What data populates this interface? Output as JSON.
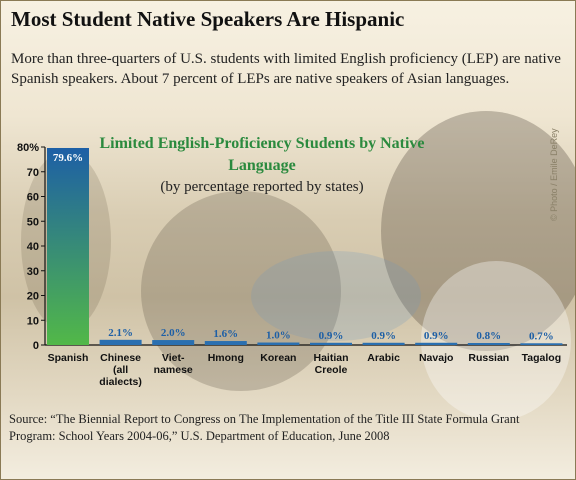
{
  "header": {
    "title": "Most Student Native Speakers Are Hispanic",
    "subtitle": "More than three-quarters of U.S. students with limited English proficiency (LEP) are native Spanish speakers. About 7 percent of LEPs are native speakers of Asian languages."
  },
  "chart_data": {
    "type": "bar",
    "title": "Limited English-Proficiency Students by Native Language",
    "subtitle": "(by percentage reported by states)",
    "categories": [
      "Spanish",
      "Chinese (all dialects)",
      "Vietnamese",
      "Hmong",
      "Korean",
      "Haitian Creole",
      "Arabic",
      "Navajo",
      "Russian",
      "Tagalog"
    ],
    "category_labels": [
      [
        "Spanish"
      ],
      [
        "Chinese",
        "(all",
        "dialects)"
      ],
      [
        "Viet-",
        "namese"
      ],
      [
        "Hmong"
      ],
      [
        "Korean"
      ],
      [
        "Haitian",
        "Creole"
      ],
      [
        "Arabic"
      ],
      [
        "Navajo"
      ],
      [
        "Russian"
      ],
      [
        "Tagalog"
      ]
    ],
    "values": [
      79.6,
      2.1,
      2.0,
      1.6,
      1.0,
      0.9,
      0.9,
      0.9,
      0.8,
      0.7
    ],
    "value_labels": [
      "79.6%",
      "2.1%",
      "2.0%",
      "1.6%",
      "1.0%",
      "0.9%",
      "0.9%",
      "0.9%",
      "0.8%",
      "0.7%"
    ],
    "ylim": [
      0,
      80
    ],
    "yticks": [
      0,
      10,
      20,
      30,
      40,
      50,
      60,
      70,
      80
    ],
    "ytick_labels": [
      "0",
      "10",
      "20",
      "30",
      "40",
      "50",
      "60",
      "70",
      "80%"
    ],
    "grid": false,
    "colors": {
      "bar_top": "#1d5fa6",
      "bar_bottom": "#52b848",
      "small_bar": "#2a6fb0",
      "title": "#2b8a3e",
      "value_label": "#1d5fa6",
      "value_label_on_bar": "#ffffff"
    }
  },
  "credit": "© Photo / Emile DeRey",
  "source": "Source: “The Biennial Report to Congress on The Implementation of the Title III State Formula Grant Program: School Years 2004-06,” U.S. Department of Education, June 2008"
}
